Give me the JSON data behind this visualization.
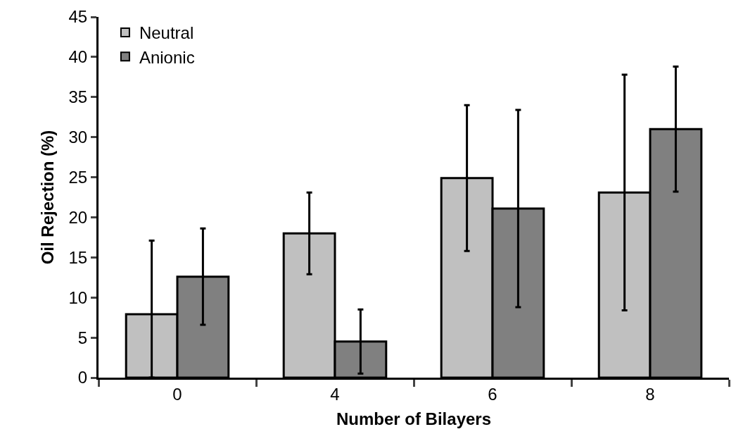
{
  "chart_data": {
    "type": "bar",
    "xlabel": "Number of Bilayers",
    "ylabel": "Oil Rejection (%)",
    "categories": [
      "0",
      "4",
      "6",
      "8"
    ],
    "series": [
      {
        "name": "Neutral",
        "color": "#c0c0c0",
        "values": [
          7.9,
          18.0,
          24.9,
          23.1
        ],
        "errors": [
          [
            0,
            17.1
          ],
          5.1,
          9.1,
          14.7
        ]
      },
      {
        "name": "Anionic",
        "color": "#808080",
        "values": [
          12.6,
          4.5,
          21.1,
          31.0
        ],
        "errors": [
          6.0,
          4.0,
          12.3,
          7.8
        ]
      }
    ],
    "ylim": [
      0,
      45
    ],
    "yticks": [
      0,
      5,
      10,
      15,
      20,
      25,
      30,
      35,
      40,
      45
    ],
    "legend": "top left"
  }
}
